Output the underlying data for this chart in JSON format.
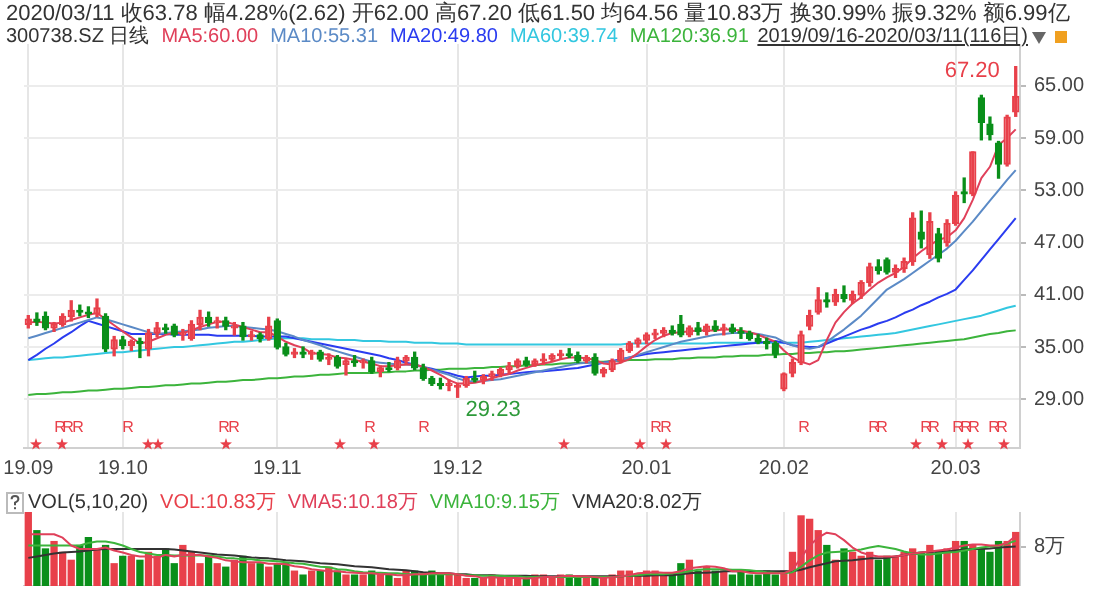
{
  "chart_data": [
    {
      "type": "candlestick",
      "title": "2020/03/11 收63.78 幅4.28%(2.62) 开62.00 高67.20 低61.50 均64.56 量10.83万 换30.99% 振9.32% 额6.99亿",
      "subtitle": "300738.SZ 日线",
      "categories": [
        "19.09",
        null,
        null,
        null,
        null,
        null,
        null,
        null,
        null,
        null,
        null,
        "19.10",
        null,
        null,
        null,
        null,
        null,
        null,
        null,
        null,
        null,
        null,
        null,
        null,
        null,
        null,
        null,
        null,
        null,
        "19.11",
        null,
        null,
        null,
        null,
        null,
        null,
        null,
        null,
        null,
        null,
        null,
        null,
        null,
        null,
        null,
        null,
        null,
        null,
        null,
        null,
        "19.12",
        null,
        null,
        null,
        null,
        null,
        null,
        null,
        null,
        null,
        null,
        null,
        null,
        null,
        null,
        null,
        null,
        null,
        null,
        null,
        null,
        null,
        "20.01",
        null,
        null,
        null,
        null,
        null,
        null,
        null,
        null,
        null,
        null,
        null,
        null,
        null,
        null,
        null,
        "20.02",
        null,
        null,
        null,
        null,
        null,
        null,
        null,
        null,
        null,
        null,
        null,
        null,
        null,
        null,
        null,
        null,
        null,
        null,
        null,
        "20.03",
        null,
        null,
        null,
        null,
        null,
        null,
        null
      ],
      "ohlc": [
        [
          37.6,
          38.6,
          37.2,
          38.2
        ],
        [
          38.2,
          38.9,
          37.5,
          37.9
        ],
        [
          38.5,
          39.0,
          37.0,
          37.2
        ],
        [
          37.2,
          37.8,
          36.8,
          37.6
        ],
        [
          37.6,
          38.8,
          37.4,
          38.5
        ],
        [
          38.5,
          40.3,
          38.0,
          39.2
        ],
        [
          39.2,
          39.8,
          38.6,
          39.0
        ],
        [
          39.0,
          39.6,
          38.4,
          38.8
        ],
        [
          38.8,
          40.5,
          38.5,
          39.5
        ],
        [
          38.5,
          38.8,
          34.5,
          34.8
        ],
        [
          34.8,
          36.2,
          34.0,
          35.8
        ],
        [
          35.8,
          36.2,
          34.8,
          35.2
        ],
        [
          35.2,
          35.8,
          34.6,
          35.6
        ],
        [
          35.6,
          36.0,
          33.8,
          35.4
        ],
        [
          34.8,
          37.0,
          34.0,
          36.6
        ],
        [
          36.6,
          37.8,
          36.2,
          37.2
        ],
        [
          37.2,
          37.6,
          36.6,
          37.0
        ],
        [
          37.4,
          37.6,
          36.2,
          36.4
        ],
        [
          36.4,
          37.0,
          35.8,
          36.6
        ],
        [
          36.0,
          38.0,
          35.8,
          37.6
        ],
        [
          37.6,
          39.2,
          37.0,
          38.4
        ],
        [
          38.4,
          39.0,
          37.4,
          37.8
        ],
        [
          37.8,
          38.4,
          37.2,
          38.0
        ],
        [
          38.0,
          38.4,
          37.0,
          37.4
        ],
        [
          37.2,
          37.8,
          36.4,
          37.4
        ],
        [
          37.4,
          37.8,
          35.8,
          36.2
        ],
        [
          36.2,
          36.8,
          35.8,
          36.4
        ],
        [
          36.4,
          36.6,
          35.6,
          36.0
        ],
        [
          36.0,
          38.4,
          35.8,
          37.4
        ],
        [
          38.0,
          38.2,
          34.8,
          35.0
        ],
        [
          35.0,
          35.4,
          34.0,
          34.2
        ],
        [
          34.2,
          34.8,
          33.8,
          34.4
        ],
        [
          34.4,
          35.0,
          33.8,
          34.2
        ],
        [
          34.2,
          34.6,
          33.6,
          34.4
        ],
        [
          34.4,
          34.6,
          33.4,
          33.6
        ],
        [
          33.6,
          34.2,
          33.0,
          33.8
        ],
        [
          33.8,
          34.0,
          32.6,
          32.8
        ],
        [
          33.0,
          33.6,
          31.8,
          33.4
        ],
        [
          33.4,
          34.0,
          32.8,
          33.2
        ],
        [
          33.2,
          33.6,
          32.6,
          33.4
        ],
        [
          33.4,
          33.8,
          32.0,
          32.2
        ],
        [
          32.2,
          32.8,
          31.6,
          32.6
        ],
        [
          32.6,
          33.2,
          32.2,
          32.4
        ],
        [
          32.6,
          33.8,
          32.4,
          33.4
        ],
        [
          33.4,
          34.0,
          33.0,
          33.8
        ],
        [
          33.8,
          34.4,
          32.4,
          32.6
        ],
        [
          32.6,
          33.0,
          31.2,
          31.4
        ],
        [
          31.4,
          31.6,
          30.6,
          30.8
        ],
        [
          30.8,
          31.4,
          30.2,
          30.6
        ],
        [
          30.6,
          31.2,
          30.0,
          30.8
        ],
        [
          30.4,
          30.8,
          29.23,
          30.6
        ],
        [
          30.6,
          31.6,
          30.4,
          31.4
        ],
        [
          31.4,
          32.2,
          31.0,
          31.2
        ],
        [
          31.2,
          31.8,
          30.8,
          31.6
        ],
        [
          31.6,
          32.2,
          31.2,
          31.9
        ],
        [
          31.9,
          32.6,
          31.6,
          32.4
        ],
        [
          32.4,
          33.2,
          32.0,
          32.8
        ],
        [
          32.8,
          33.6,
          32.6,
          33.4
        ],
        [
          33.4,
          33.8,
          32.8,
          33.0
        ],
        [
          33.0,
          33.6,
          32.8,
          33.4
        ],
        [
          33.4,
          34.2,
          33.0,
          33.6
        ],
        [
          33.6,
          34.2,
          33.4,
          34.0
        ],
        [
          34.0,
          34.6,
          33.6,
          34.2
        ],
        [
          34.2,
          34.8,
          33.8,
          34.0
        ],
        [
          34.0,
          34.4,
          33.2,
          33.4
        ],
        [
          33.4,
          34.0,
          33.2,
          33.8
        ],
        [
          33.8,
          34.2,
          31.8,
          32.0
        ],
        [
          32.0,
          32.6,
          31.6,
          32.4
        ],
        [
          32.4,
          33.6,
          32.2,
          33.4
        ],
        [
          33.4,
          34.8,
          33.2,
          34.6
        ],
        [
          34.6,
          35.6,
          34.4,
          35.4
        ],
        [
          35.4,
          36.0,
          35.0,
          35.8
        ],
        [
          35.8,
          36.6,
          35.4,
          36.4
        ],
        [
          36.4,
          37.0,
          36.0,
          36.6
        ],
        [
          36.6,
          37.2,
          36.2,
          36.9
        ],
        [
          36.9,
          37.4,
          36.4,
          36.6
        ],
        [
          37.6,
          38.6,
          36.2,
          36.4
        ],
        [
          36.4,
          37.4,
          36.2,
          37.2
        ],
        [
          37.2,
          37.8,
          36.4,
          36.8
        ],
        [
          36.8,
          37.6,
          36.4,
          37.4
        ],
        [
          37.4,
          38.0,
          36.8,
          37.0
        ],
        [
          37.0,
          37.6,
          36.4,
          37.2
        ],
        [
          37.2,
          37.6,
          36.6,
          36.8
        ],
        [
          36.8,
          37.2,
          36.0,
          36.6
        ],
        [
          36.6,
          36.8,
          35.8,
          36.0
        ],
        [
          36.0,
          36.4,
          35.4,
          35.6
        ],
        [
          35.6,
          36.0,
          34.8,
          35.4
        ],
        [
          35.4,
          35.6,
          33.8,
          34.2
        ],
        [
          30.2,
          32.0,
          30.0,
          31.9
        ],
        [
          32.0,
          33.6,
          31.6,
          33.2
        ],
        [
          33.2,
          36.8,
          33.0,
          36.4
        ],
        [
          37.4,
          39.2,
          37.0,
          38.6
        ],
        [
          39.0,
          41.8,
          38.8,
          40.4
        ],
        [
          40.4,
          41.2,
          39.6,
          40.2
        ],
        [
          40.2,
          41.6,
          39.8,
          41.0
        ],
        [
          41.0,
          42.0,
          40.2,
          40.6
        ],
        [
          40.4,
          41.4,
          40.0,
          41.0
        ],
        [
          41.0,
          42.6,
          40.6,
          42.4
        ],
        [
          42.4,
          44.6,
          42.0,
          44.2
        ],
        [
          44.2,
          45.0,
          43.4,
          43.8
        ],
        [
          45.0,
          45.2,
          43.4,
          43.6
        ],
        [
          43.6,
          44.4,
          43.0,
          44.0
        ],
        [
          44.0,
          45.2,
          43.6,
          44.8
        ],
        [
          44.8,
          50.4,
          44.4,
          49.8
        ],
        [
          48.2,
          50.6,
          46.4,
          47.4
        ],
        [
          45.6,
          50.4,
          45.2,
          49.4
        ],
        [
          48.0,
          48.6,
          44.8,
          45.2
        ],
        [
          47.0,
          49.6,
          46.6,
          49.2
        ],
        [
          49.2,
          52.8,
          49.0,
          52.4
        ],
        [
          52.8,
          54.4,
          51.6,
          52.6
        ],
        [
          52.6,
          57.4,
          52.4,
          57.4
        ],
        [
          63.6,
          63.9,
          58.8,
          60.8
        ],
        [
          60.6,
          61.4,
          58.8,
          59.4
        ],
        [
          58.4,
          58.6,
          54.4,
          56.0
        ],
        [
          56.0,
          61.6,
          55.8,
          61.4
        ],
        [
          62.0,
          67.2,
          61.5,
          63.78
        ]
      ],
      "colors": [
        "#e8404a",
        "#0a8f1a",
        "#0a8f1a",
        "#e8404a",
        "#e8404a",
        "#e8404a",
        "#0a8f1a",
        "#0a8f1a",
        "#e8404a",
        "#0a8f1a",
        "#e8404a",
        "#0a8f1a",
        "#e8404a",
        "#0a8f1a",
        "#e8404a",
        "#e8404a",
        "#0a8f1a",
        "#0a8f1a",
        "#e8404a",
        "#e8404a",
        "#e8404a",
        "#0a8f1a",
        "#e8404a",
        "#0a8f1a",
        "#e8404a",
        "#0a8f1a",
        "#e8404a",
        "#0a8f1a",
        "#e8404a",
        "#0a8f1a",
        "#0a8f1a",
        "#e8404a",
        "#0a8f1a",
        "#e8404a",
        "#0a8f1a",
        "#e8404a",
        "#0a8f1a",
        "#e8404a",
        "#0a8f1a",
        "#e8404a",
        "#0a8f1a",
        "#e8404a",
        "#0a8f1a",
        "#e8404a",
        "#e8404a",
        "#0a8f1a",
        "#0a8f1a",
        "#0a8f1a",
        "#0a8f1a",
        "#e8404a",
        "#e8404a",
        "#e8404a",
        "#0a8f1a",
        "#e8404a",
        "#e8404a",
        "#e8404a",
        "#e8404a",
        "#e8404a",
        "#0a8f1a",
        "#e8404a",
        "#e8404a",
        "#e8404a",
        "#e8404a",
        "#0a8f1a",
        "#0a8f1a",
        "#e8404a",
        "#0a8f1a",
        "#e8404a",
        "#e8404a",
        "#e8404a",
        "#e8404a",
        "#e8404a",
        "#e8404a",
        "#e8404a",
        "#e8404a",
        "#0a8f1a",
        "#0a8f1a",
        "#e8404a",
        "#0a8f1a",
        "#e8404a",
        "#0a8f1a",
        "#e8404a",
        "#0a8f1a",
        "#0a8f1a",
        "#0a8f1a",
        "#0a8f1a",
        "#0a8f1a",
        "#0a8f1a",
        "#e8404a",
        "#e8404a",
        "#e8404a",
        "#e8404a",
        "#e8404a",
        "#0a8f1a",
        "#e8404a",
        "#0a8f1a",
        "#e8404a",
        "#e8404a",
        "#e8404a",
        "#0a8f1a",
        "#0a8f1a",
        "#e8404a",
        "#e8404a",
        "#e8404a",
        "#0a8f1a",
        "#e8404a",
        "#0a8f1a",
        "#e8404a",
        "#e8404a",
        "#0a8f1a",
        "#e8404a",
        "#0a8f1a",
        "#0a8f1a",
        "#0a8f1a",
        "#e8404a",
        "#e8404a"
      ],
      "series": [
        {
          "name": "MA5:60.00",
          "type": "line",
          "color": "#e0405a",
          "values": [
            37.8,
            37.9,
            37.8,
            37.7,
            37.8,
            38.1,
            38.4,
            38.7,
            38.9,
            38.2,
            37.5,
            36.8,
            36.1,
            35.4,
            35.6,
            36.0,
            36.4,
            36.6,
            36.6,
            36.9,
            37.3,
            37.6,
            37.9,
            37.9,
            37.6,
            37.3,
            37.0,
            36.7,
            36.7,
            36.2,
            35.6,
            35.2,
            34.9,
            34.3,
            34.2,
            34.1,
            33.8,
            33.7,
            33.5,
            33.3,
            33.1,
            32.8,
            32.8,
            32.9,
            33.0,
            33.0,
            32.7,
            32.3,
            31.8,
            31.2,
            30.8,
            30.8,
            30.9,
            31.1,
            31.4,
            31.7,
            31.9,
            32.3,
            32.6,
            32.9,
            33.1,
            33.3,
            33.6,
            33.8,
            33.8,
            33.7,
            33.5,
            33.1,
            33.0,
            33.2,
            33.6,
            34.3,
            35.1,
            35.8,
            36.3,
            36.6,
            36.7,
            36.8,
            36.9,
            36.9,
            36.9,
            37.0,
            37.0,
            36.9,
            36.7,
            36.4,
            36.0,
            35.6,
            34.6,
            33.8,
            33.3,
            33.0,
            33.5,
            35.8,
            37.8,
            39.0,
            40.0,
            40.7,
            41.6,
            42.4,
            43.0,
            43.5,
            44.2,
            45.2,
            46.0,
            46.7,
            47.3,
            47.6,
            48.4,
            49.8,
            51.9,
            54.4,
            55.7,
            58.2,
            59.0,
            60.0
          ]
        },
        {
          "name": "MA10:55.31",
          "type": "line",
          "color": "#5b8ac6",
          "values": [
            36.0,
            36.3,
            36.6,
            36.9,
            37.2,
            37.5,
            37.8,
            38.1,
            38.4,
            38.2,
            37.9,
            37.6,
            37.3,
            37.0,
            36.7,
            36.5,
            36.6,
            36.7,
            36.8,
            36.9,
            37.0,
            37.2,
            37.3,
            37.4,
            37.4,
            37.3,
            37.2,
            37.1,
            37.0,
            36.8,
            36.5,
            36.2,
            35.8,
            35.5,
            35.2,
            34.8,
            34.5,
            34.2,
            33.9,
            33.6,
            33.3,
            33.2,
            33.1,
            33.0,
            33.0,
            32.9,
            32.7,
            32.4,
            32.1,
            31.8,
            31.4,
            31.1,
            31.0,
            31.1,
            31.2,
            31.3,
            31.5,
            31.7,
            31.9,
            32.1,
            32.3,
            32.5,
            32.7,
            32.9,
            33.1,
            33.2,
            33.2,
            33.2,
            33.3,
            33.5,
            33.8,
            34.1,
            34.4,
            34.7,
            35.0,
            35.3,
            35.6,
            35.8,
            36.0,
            36.2,
            36.4,
            36.5,
            36.6,
            36.6,
            36.6,
            36.5,
            36.3,
            36.1,
            35.6,
            35.2,
            34.9,
            34.8,
            35.0,
            35.6,
            36.3,
            37.0,
            37.8,
            38.6,
            39.6,
            40.6,
            41.6,
            42.2,
            42.8,
            43.5,
            44.2,
            44.9,
            45.6,
            46.3,
            47.2,
            48.3,
            49.4,
            50.6,
            51.8,
            53.0,
            54.2,
            55.31
          ]
        },
        {
          "name": "MA20:49.80",
          "type": "line",
          "color": "#2a3cf0",
          "values": [
            33.5,
            34.1,
            34.8,
            35.4,
            36.1,
            36.7,
            37.4,
            38.0,
            37.7,
            37.4,
            37.1,
            36.8,
            36.5,
            36.5,
            36.5,
            36.5,
            36.5,
            36.4,
            36.4,
            36.4,
            36.4,
            36.4,
            36.3,
            36.3,
            36.3,
            36.3,
            36.3,
            36.2,
            36.2,
            36.2,
            36.2,
            36.0,
            35.8,
            35.6,
            35.4,
            35.2,
            35.0,
            34.8,
            34.6,
            34.4,
            34.2,
            34.0,
            33.7,
            33.5,
            33.2,
            33.0,
            32.7,
            32.5,
            32.2,
            32.0,
            31.7,
            31.5,
            31.6,
            31.7,
            31.7,
            31.8,
            31.9,
            32.0,
            32.1,
            32.2,
            32.2,
            32.3,
            32.4,
            32.5,
            32.6,
            32.8,
            33.0,
            33.2,
            33.4,
            33.6,
            33.8,
            34.0,
            34.2,
            34.3,
            34.4,
            34.5,
            34.6,
            34.7,
            34.8,
            34.9,
            35.0,
            35.1,
            35.2,
            35.3,
            35.4,
            35.5,
            35.6,
            35.7,
            35.5,
            35.2,
            35.1,
            35.0,
            35.0,
            35.4,
            35.8,
            36.2,
            36.6,
            37.0,
            37.3,
            37.7,
            38.0,
            38.4,
            38.9,
            39.3,
            39.8,
            40.2,
            40.7,
            41.1,
            41.6,
            42.7,
            43.8,
            45.0,
            46.2,
            47.4,
            48.6,
            49.8
          ]
        },
        {
          "name": "MA60:39.74",
          "type": "line",
          "color": "#33c7e0",
          "values": [
            33.5,
            33.6,
            33.7,
            33.8,
            33.8,
            33.9,
            34.0,
            34.1,
            34.2,
            34.3,
            34.4,
            34.4,
            34.5,
            34.6,
            34.7,
            34.8,
            34.9,
            35.0,
            35.0,
            35.1,
            35.2,
            35.3,
            35.4,
            35.5,
            35.6,
            35.6,
            35.7,
            35.8,
            35.9,
            36.0,
            36.0,
            36.0,
            36.0,
            35.9,
            35.9,
            35.9,
            35.8,
            35.8,
            35.8,
            35.7,
            35.7,
            35.7,
            35.6,
            35.6,
            35.6,
            35.5,
            35.5,
            35.5,
            35.4,
            35.4,
            35.4,
            35.3,
            35.3,
            35.3,
            35.3,
            35.3,
            35.3,
            35.3,
            35.3,
            35.3,
            35.3,
            35.3,
            35.3,
            35.3,
            35.3,
            35.3,
            35.3,
            35.3,
            35.3,
            35.3,
            35.4,
            35.4,
            35.4,
            35.4,
            35.4,
            35.4,
            35.4,
            35.4,
            35.4,
            35.4,
            35.5,
            35.5,
            35.5,
            35.5,
            35.5,
            35.5,
            35.5,
            35.5,
            35.5,
            35.5,
            35.5,
            35.6,
            35.7,
            35.8,
            35.9,
            36.0,
            36.1,
            36.2,
            36.3,
            36.4,
            36.5,
            36.6,
            36.8,
            37.0,
            37.2,
            37.4,
            37.6,
            37.8,
            38.0,
            38.2,
            38.4,
            38.6,
            38.9,
            39.2,
            39.5,
            39.74
          ]
        },
        {
          "name": "MA120:36.91",
          "type": "line",
          "color": "#3cb43c",
          "values": [
            29.5,
            29.6,
            29.6,
            29.7,
            29.8,
            29.8,
            29.9,
            30.0,
            30.0,
            30.1,
            30.2,
            30.2,
            30.3,
            30.4,
            30.4,
            30.5,
            30.6,
            30.6,
            30.7,
            30.8,
            30.8,
            30.9,
            31.0,
            31.0,
            31.1,
            31.2,
            31.2,
            31.3,
            31.4,
            31.4,
            31.5,
            31.6,
            31.6,
            31.7,
            31.8,
            31.8,
            31.9,
            32.0,
            32.0,
            32.0,
            32.0,
            32.1,
            32.1,
            32.2,
            32.2,
            32.3,
            32.3,
            32.4,
            32.4,
            32.5,
            32.5,
            32.5,
            32.6,
            32.6,
            32.7,
            32.7,
            32.8,
            32.8,
            32.9,
            32.9,
            33.0,
            33.0,
            33.1,
            33.1,
            33.2,
            33.2,
            33.3,
            33.3,
            33.4,
            33.4,
            33.5,
            33.5,
            33.5,
            33.6,
            33.6,
            33.6,
            33.7,
            33.7,
            33.8,
            33.8,
            33.8,
            33.9,
            33.9,
            34.0,
            34.0,
            34.0,
            34.1,
            34.1,
            34.2,
            34.2,
            34.3,
            34.3,
            34.4,
            34.4,
            34.5,
            34.5,
            34.6,
            34.7,
            34.8,
            34.9,
            35.0,
            35.1,
            35.2,
            35.3,
            35.4,
            35.5,
            35.6,
            35.7,
            35.8,
            35.9,
            36.1,
            36.3,
            36.5,
            36.6,
            36.8,
            36.91
          ]
        }
      ],
      "ylim": [
        23.4,
        69.8
      ],
      "yticks": [
        {
          "value": 29,
          "label": "29.00"
        },
        {
          "value": 35,
          "label": "35.00"
        },
        {
          "value": 41,
          "label": "41.00"
        },
        {
          "value": 47,
          "label": "47.00"
        },
        {
          "value": 53,
          "label": "53.00"
        },
        {
          "value": 59,
          "label": "59.00"
        },
        {
          "value": 65,
          "label": "65.00"
        }
      ],
      "grid": true,
      "legend": "top left",
      "annotations": [
        "2019/09/16-2020/03/11(116日)",
        "67.20",
        "29.23",
        "R",
        "R",
        "R",
        "R",
        "R",
        "R",
        "R",
        "R",
        "R",
        "R",
        "R",
        "R",
        "R",
        "R",
        "R",
        "R",
        "R",
        "R",
        "R",
        "R"
      ]
    },
    {
      "type": "bar",
      "title": "VOL(5,10,20)",
      "tick_labels": "y",
      "grid": "x",
      "legend": "top left",
      "categories": [
        "19.09",
        null,
        null,
        null,
        null,
        null,
        null,
        null,
        null,
        null,
        null,
        "19.10",
        null,
        null,
        null,
        null,
        null,
        null,
        null,
        null,
        null,
        null,
        null,
        null,
        null,
        null,
        null,
        null,
        null,
        "19.11",
        null,
        null,
        null,
        null,
        null,
        null,
        null,
        null,
        null,
        null,
        null,
        null,
        null,
        null,
        null,
        null,
        null,
        null,
        null,
        null,
        "19.12",
        null,
        null,
        null,
        null,
        null,
        null,
        null,
        null,
        null,
        null,
        null,
        null,
        null,
        null,
        null,
        null,
        null,
        null,
        null,
        null,
        null,
        "20.01",
        null,
        null,
        null,
        null,
        null,
        null,
        null,
        null,
        null,
        null,
        null,
        null,
        null,
        null,
        null,
        "20.02",
        null,
        null,
        null,
        null,
        null,
        null,
        null,
        null,
        null,
        null,
        null,
        null,
        null,
        null,
        null,
        null,
        null,
        null,
        null,
        "20.03",
        null,
        null,
        null,
        null,
        null,
        null,
        null
      ],
      "ylim": [
        0,
        15
      ],
      "yticks": [
        {
          "value": 8,
          "label": "8万"
        }
      ],
      "series": [
        {
          "name": "VOL:10.83万",
          "type": "bar",
          "color": "#e8404a",
          "values": [
            15,
            11.2,
            7.5,
            9,
            6.8,
            5.2,
            8.2,
            9.8,
            7.5,
            8.2,
            4.5,
            6,
            6,
            5.2,
            6.8,
            6,
            7.5,
            4.5,
            8.2,
            6.8,
            4.5,
            6,
            4.5,
            3.8,
            5.2,
            6,
            4.5,
            4.5,
            3.8,
            4.5,
            4.5,
            3,
            2.2,
            3,
            3,
            3.8,
            3,
            2.2,
            2.2,
            2.2,
            3,
            2.2,
            2.2,
            1.5,
            3,
            3,
            2.2,
            3,
            2.2,
            2.2,
            2.2,
            1.5,
            1.5,
            1.5,
            2.2,
            1.5,
            1.5,
            1.5,
            1.5,
            2.2,
            2.2,
            1.5,
            2.2,
            2.2,
            1.5,
            1.5,
            1.5,
            1.5,
            2.2,
            3,
            3,
            2.2,
            3,
            3,
            2.2,
            2.2,
            4.5,
            5.2,
            3,
            3.8,
            3,
            3,
            2.2,
            3,
            2.2,
            2.2,
            3,
            2.2,
            3,
            6.8,
            14.2,
            13.5,
            11.2,
            8.2,
            5.2,
            7.5,
            6.8,
            6,
            6.8,
            5.2,
            6,
            6,
            6.8,
            7.5,
            6.8,
            8.2,
            6.8,
            7.5,
            9,
            9,
            8.2,
            7.5,
            6.8,
            9,
            9,
            10.83
          ],
          "colors": [
            "#e8404a",
            "#0a8f1a",
            "#0a8f1a",
            "#e8404a",
            "#e8404a",
            "#e8404a",
            "#0a8f1a",
            "#0a8f1a",
            "#e8404a",
            "#0a8f1a",
            "#e8404a",
            "#0a8f1a",
            "#e8404a",
            "#0a8f1a",
            "#e8404a",
            "#e8404a",
            "#0a8f1a",
            "#0a8f1a",
            "#e8404a",
            "#e8404a",
            "#e8404a",
            "#0a8f1a",
            "#e8404a",
            "#0a8f1a",
            "#e8404a",
            "#0a8f1a",
            "#e8404a",
            "#0a8f1a",
            "#e8404a",
            "#0a8f1a",
            "#0a8f1a",
            "#e8404a",
            "#0a8f1a",
            "#e8404a",
            "#0a8f1a",
            "#e8404a",
            "#0a8f1a",
            "#e8404a",
            "#0a8f1a",
            "#e8404a",
            "#0a8f1a",
            "#e8404a",
            "#0a8f1a",
            "#e8404a",
            "#e8404a",
            "#0a8f1a",
            "#0a8f1a",
            "#0a8f1a",
            "#0a8f1a",
            "#e8404a",
            "#e8404a",
            "#e8404a",
            "#0a8f1a",
            "#e8404a",
            "#e8404a",
            "#e8404a",
            "#e8404a",
            "#e8404a",
            "#0a8f1a",
            "#e8404a",
            "#e8404a",
            "#e8404a",
            "#e8404a",
            "#0a8f1a",
            "#0a8f1a",
            "#e8404a",
            "#0a8f1a",
            "#e8404a",
            "#e8404a",
            "#e8404a",
            "#e8404a",
            "#e8404a",
            "#e8404a",
            "#e8404a",
            "#e8404a",
            "#0a8f1a",
            "#0a8f1a",
            "#e8404a",
            "#0a8f1a",
            "#e8404a",
            "#0a8f1a",
            "#e8404a",
            "#0a8f1a",
            "#0a8f1a",
            "#0a8f1a",
            "#0a8f1a",
            "#0a8f1a",
            "#0a8f1a",
            "#e8404a",
            "#e8404a",
            "#e8404a",
            "#e8404a",
            "#e8404a",
            "#0a8f1a",
            "#e8404a",
            "#0a8f1a",
            "#e8404a",
            "#e8404a",
            "#e8404a",
            "#0a8f1a",
            "#0a8f1a",
            "#e8404a",
            "#e8404a",
            "#e8404a",
            "#0a8f1a",
            "#e8404a",
            "#0a8f1a",
            "#e8404a",
            "#e8404a",
            "#0a8f1a",
            "#e8404a",
            "#0a8f1a",
            "#0a8f1a",
            "#0a8f1a",
            "#e8404a",
            "#e8404a"
          ]
        },
        {
          "name": "VMA5:10.18万",
          "type": "line",
          "color": "#e0405a",
          "values": [
            10.5,
            10.5,
            10.5,
            10.5,
            9.8,
            8.2,
            7.5,
            7.5,
            7.5,
            7.8,
            7.2,
            6.8,
            6.3,
            6,
            6,
            5.7,
            6.3,
            6,
            6.3,
            6.3,
            6.3,
            6,
            5.7,
            5.2,
            5,
            4.8,
            4.8,
            4.8,
            4.5,
            4.5,
            4.4,
            4,
            3.8,
            3.4,
            3.2,
            3,
            3,
            2.8,
            2.7,
            2.6,
            2.6,
            2.4,
            2.4,
            2.2,
            2.2,
            2.4,
            2.4,
            2.6,
            2.6,
            2.6,
            2.4,
            2.1,
            2,
            1.6,
            1.8,
            1.6,
            1.6,
            1.6,
            1.5,
            1.6,
            1.8,
            1.8,
            2,
            2.1,
            2,
            2,
            1.8,
            1.6,
            1.8,
            2,
            2.2,
            2.6,
            2.7,
            2.8,
            2.7,
            2.7,
            3,
            3.6,
            3.8,
            4,
            3.9,
            3.6,
            3,
            3,
            2.7,
            2.6,
            2.6,
            2.6,
            2.6,
            3.3,
            5.7,
            8.2,
            9.8,
            10.8,
            10.5,
            9.3,
            7.8,
            6.8,
            6.3,
            6,
            6,
            6,
            6.3,
            6.6,
            6.8,
            7,
            7.2,
            7.4,
            7.8,
            8.2,
            8.4,
            8.4,
            8.2,
            8.2,
            8.7,
            10.18
          ]
        },
        {
          "name": "VMA10:9.15万",
          "type": "line",
          "color": "#3cb43c",
          "values": [
            8.2,
            8.2,
            8.2,
            8.2,
            8.2,
            8.2,
            8.2,
            8.7,
            9,
            9,
            8.7,
            8.2,
            7.5,
            6.9,
            6.6,
            6.3,
            6.3,
            6.2,
            6.2,
            6.2,
            6.2,
            6.2,
            6,
            5.7,
            5.6,
            5.4,
            5.4,
            5.2,
            5.1,
            5,
            4.8,
            4.6,
            4.5,
            4.2,
            3.9,
            3.8,
            3.4,
            3.3,
            3,
            2.8,
            2.7,
            2.7,
            2.6,
            2.6,
            2.4,
            2.4,
            2.4,
            2.4,
            2.4,
            2.4,
            2.4,
            2.2,
            2.2,
            2.1,
            2.1,
            2.1,
            2,
            2,
            1.8,
            1.8,
            1.8,
            1.8,
            1.8,
            1.8,
            1.8,
            1.8,
            1.8,
            1.8,
            1.8,
            2,
            2.1,
            2.2,
            2.4,
            2.4,
            2.4,
            2.6,
            2.7,
            3,
            3.3,
            3.4,
            3.4,
            3.4,
            3.3,
            3.3,
            3.2,
            3,
            2.8,
            2.7,
            2.6,
            2.8,
            3.9,
            5.2,
            6.2,
            6.8,
            6.9,
            7,
            7.2,
            7.4,
            7.8,
            8.1,
            7.8,
            7.5,
            7,
            6.6,
            6.4,
            6.4,
            6.6,
            6.8,
            6.9,
            7.2,
            7.5,
            7.8,
            8,
            8.1,
            8.6,
            9.15
          ]
        },
        {
          "name": "VMA20:8.02万",
          "type": "line",
          "color": "#333333",
          "values": [
            5.7,
            6,
            6.3,
            6.6,
            6.8,
            6.9,
            7,
            7.2,
            7.4,
            7.5,
            7.5,
            7.5,
            7.5,
            7.5,
            7.5,
            7.5,
            7.5,
            7.4,
            7.2,
            7,
            6.8,
            6.6,
            6.4,
            6.3,
            6.2,
            6,
            5.8,
            5.7,
            5.6,
            5.4,
            5.2,
            5.1,
            5,
            4.8,
            4.6,
            4.5,
            4.4,
            4.2,
            4,
            3.9,
            3.8,
            3.6,
            3.4,
            3.3,
            3.2,
            3,
            2.8,
            2.7,
            2.6,
            2.6,
            2.4,
            2.4,
            2.2,
            2.2,
            2.2,
            2.1,
            2.1,
            2.1,
            2.1,
            2,
            2,
            2,
            2,
            2,
            2,
            2,
            2,
            2,
            2,
            2,
            2.1,
            2.1,
            2.1,
            2.2,
            2.2,
            2.2,
            2.4,
            2.6,
            2.7,
            2.7,
            2.8,
            3,
            3,
            3,
            3,
            3,
            3,
            3,
            3,
            3,
            3.3,
            3.8,
            4.2,
            4.6,
            5,
            5.1,
            5.2,
            5.4,
            5.6,
            5.6,
            5.7,
            6,
            6.3,
            6.6,
            6.8,
            6.9,
            7,
            7,
            7.2,
            7.4,
            7.5,
            7.5,
            7.6,
            7.8,
            7.9,
            8.02
          ]
        }
      ]
    }
  ]
}
